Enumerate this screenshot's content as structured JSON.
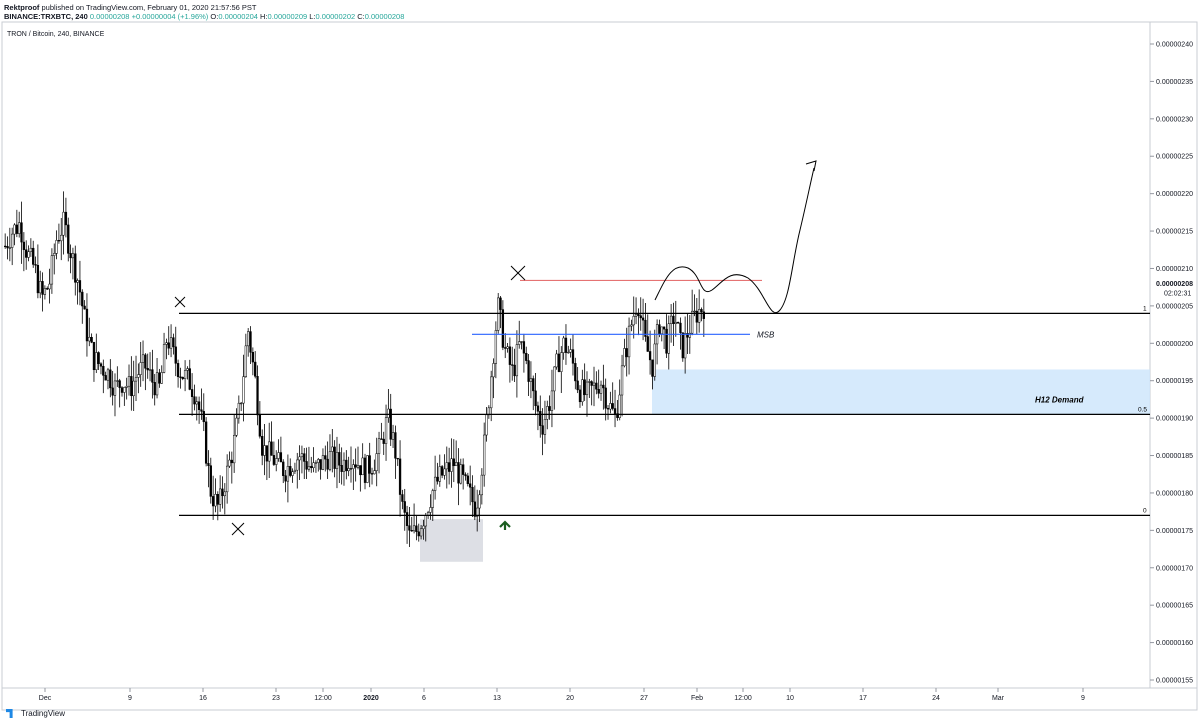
{
  "header": {
    "author": "Rektproof",
    "published_text": "published on TradingView.com, February 01, 2020 21:57:56 PST",
    "symbol": "BINANCE:TRXBTC, 240",
    "last": "0.00000208",
    "change": "+0.00000004 (+1.96%)",
    "open_label": "O:",
    "open": "0.00000204",
    "high_label": "H:",
    "high": "0.00000209",
    "low_label": "L:",
    "low": "0.00000202",
    "close_label": "C:",
    "close": "0.00000208"
  },
  "symbol_line": "TRON / Bitcoin, 240, BINANCE",
  "footer": {
    "brand": "TradingView"
  },
  "colors": {
    "up": "#26a69a",
    "range": "#000000",
    "resistance": "#e57373",
    "msb": "#2962ff",
    "demand": "#cfe6fb",
    "arrow": "#1b5e20"
  },
  "chart_data": {
    "type": "candlestick",
    "y_ticks": [
      "0.00000240",
      "0.00000235",
      "0.00000230",
      "0.00000225",
      "0.00000220",
      "0.00000215",
      "0.00000210",
      "0.00000205",
      "0.00000200",
      "0.00000195",
      "0.00000190",
      "0.00000185",
      "0.00000180",
      "0.00000175",
      "0.00000170",
      "0.00000165",
      "0.00000160",
      "0.00000155"
    ],
    "ylim": [
      1.53e-06,
      2.41e-06
    ],
    "x_ticks": [
      "Dec",
      "9",
      "16",
      "23",
      "12:00",
      "2020",
      "6",
      "13",
      "20",
      "27",
      "Feb",
      "12:00",
      "10",
      "17",
      "24",
      "Mar",
      "9"
    ],
    "last_price_label": "0.00000208",
    "countdown": "02:02:31",
    "fib_labels": [
      "1",
      "0.5",
      "0"
    ],
    "levels": {
      "fib_1": 2.04e-06,
      "fib_05": 1.905e-06,
      "fib_0": 1.77e-06,
      "red_resistance": 2.084e-06,
      "msb": 2.012e-06
    },
    "annotations": {
      "msb": "MSB",
      "demand": "H12 Demand"
    },
    "demand_zone": [
      1.905e-06,
      1.965e-06
    ],
    "close_path": [
      2.13,
      2.15,
      2.16,
      2.12,
      2.1,
      2.06,
      2.08,
      2.14,
      2.16,
      2.12,
      2.08,
      2.02,
      1.98,
      1.97,
      1.96,
      1.94,
      1.95,
      1.94,
      1.96,
      1.97,
      1.95,
      1.94,
      2.01,
      1.98,
      1.96,
      1.95,
      1.93,
      1.88,
      1.8,
      1.78,
      1.82,
      1.86,
      1.92,
      2.02,
      1.95,
      1.86,
      1.85,
      1.84,
      1.83,
      1.84,
      1.85,
      1.84,
      1.83,
      1.84,
      1.85,
      1.84,
      1.84,
      1.85,
      1.84,
      1.83,
      1.84,
      1.86,
      1.9,
      1.86,
      1.78,
      1.74,
      1.75,
      1.77,
      1.8,
      1.82,
      1.83,
      1.84,
      1.82,
      1.8,
      1.78,
      1.85,
      1.95,
      2.05,
      1.99,
      1.96,
      2.0,
      1.97,
      1.92,
      1.89,
      1.92,
      1.97,
      2.0,
      1.98,
      1.94,
      1.93,
      1.94,
      1.95,
      1.92,
      1.9,
      1.97,
      2.02,
      2.06,
      2.0,
      1.97,
      2.03,
      2.0,
      2.04,
      1.99,
      2.02,
      2.04,
      2.05
    ]
  }
}
